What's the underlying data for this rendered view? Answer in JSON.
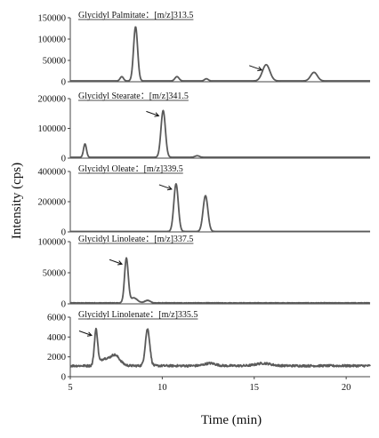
{
  "chart_data": {
    "type": "line",
    "ylabel": "Intensity (cps)",
    "xlabel": "Time (min)",
    "xlim": [
      5,
      21.3
    ],
    "x_ticks": [
      5,
      10,
      15,
      20
    ],
    "x_tick_labels": [
      "5",
      "10",
      "15",
      "20"
    ],
    "line_color": "#5a5a5a",
    "panels": [
      {
        "title": "Glycidyl Palmitate：[m/z]313.5",
        "ylim": [
          0,
          150000
        ],
        "y_ticks": [
          0,
          50000,
          100000,
          150000
        ],
        "y_tick_labels": [
          "0",
          "50000",
          "100000",
          "150000"
        ],
        "baseline": 2000,
        "noise": 0,
        "peaks": [
          {
            "x": 7.8,
            "y": 10000,
            "w": 0.09
          },
          {
            "x": 8.55,
            "y": 127000,
            "w": 0.11
          },
          {
            "x": 10.8,
            "y": 10000,
            "w": 0.11
          },
          {
            "x": 12.4,
            "y": 5000,
            "w": 0.1
          },
          {
            "x": 15.65,
            "y": 38000,
            "w": 0.2
          },
          {
            "x": 18.25,
            "y": 20000,
            "w": 0.18
          }
        ],
        "arrow_peak_x": 15.65
      },
      {
        "title": "Glycidyl Stearate：[m/z]341.5",
        "ylim": [
          0,
          200000
        ],
        "y_ticks": [
          0,
          100000,
          200000
        ],
        "y_tick_labels": [
          "0",
          "100000",
          "200000"
        ],
        "baseline": 3000,
        "noise": 0,
        "peaks": [
          {
            "x": 5.8,
            "y": 45000,
            "w": 0.08
          },
          {
            "x": 10.05,
            "y": 157000,
            "w": 0.12
          },
          {
            "x": 11.9,
            "y": 5000,
            "w": 0.12
          }
        ],
        "arrow_peak_x": 10.05
      },
      {
        "title": "Glycidyl Oleate：[m/z]339.5",
        "ylim": [
          0,
          400000
        ],
        "y_ticks": [
          0,
          200000,
          400000
        ],
        "y_tick_labels": [
          "0",
          "200000",
          "400000"
        ],
        "baseline": 3000,
        "noise": 0,
        "peaks": [
          {
            "x": 10.75,
            "y": 315000,
            "w": 0.12
          },
          {
            "x": 12.35,
            "y": 237000,
            "w": 0.13
          }
        ],
        "arrow_peak_x": 10.75
      },
      {
        "title": "Glycidyl Linoleate：[m/z]337.5",
        "ylim": [
          0,
          100000
        ],
        "y_ticks": [
          0,
          50000,
          100000
        ],
        "y_tick_labels": [
          "0",
          "50000",
          "100000"
        ],
        "baseline": 1500,
        "noise": 400,
        "peaks": [
          {
            "x": 8.05,
            "y": 71000,
            "w": 0.1
          },
          {
            "x": 8.45,
            "y": 8000,
            "w": 0.2
          },
          {
            "x": 9.2,
            "y": 4000,
            "w": 0.15
          }
        ],
        "arrow_peak_x": 8.05
      },
      {
        "title": "Glycidyl Linolenate：[m/z]335.5",
        "ylim": [
          0,
          6000
        ],
        "y_ticks": [
          0,
          2000,
          4000,
          6000
        ],
        "y_tick_labels": [
          "0",
          "2000",
          "4000",
          "6000"
        ],
        "baseline": 1100,
        "noise": 110,
        "peaks": [
          {
            "x": 6.4,
            "y": 3600,
            "w": 0.09
          },
          {
            "x": 6.8,
            "y": 600,
            "w": 0.2
          },
          {
            "x": 7.4,
            "y": 1100,
            "w": 0.28
          },
          {
            "x": 9.2,
            "y": 3700,
            "w": 0.12
          },
          {
            "x": 12.6,
            "y": 250,
            "w": 0.3
          },
          {
            "x": 15.5,
            "y": 250,
            "w": 0.4
          }
        ],
        "arrow_peak_x": 6.4
      }
    ]
  }
}
